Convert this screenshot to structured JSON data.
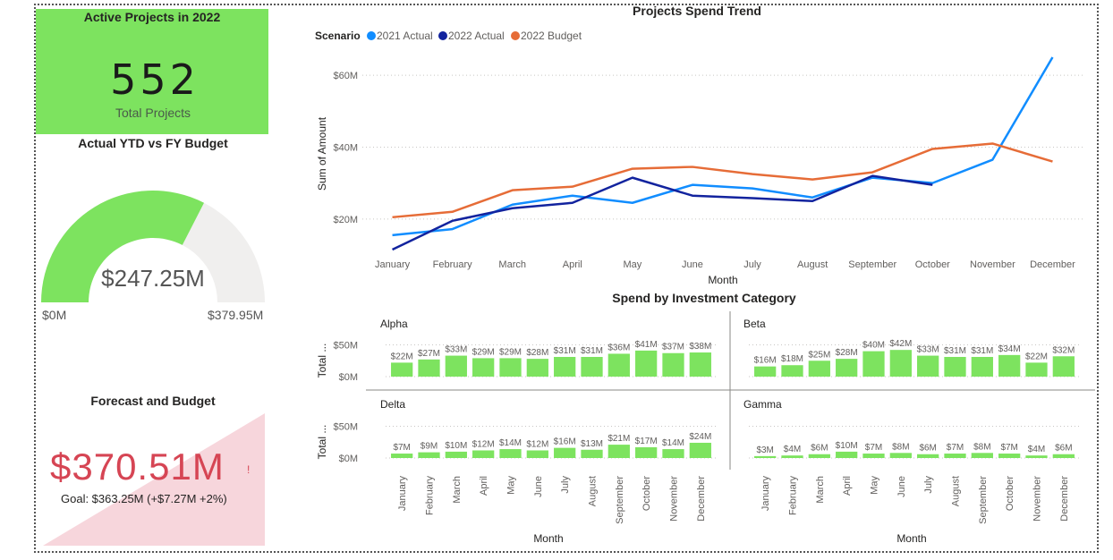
{
  "kpi": {
    "title": "Active Projects in 2022",
    "value": "552",
    "label": "Total Projects",
    "bg_color": "#7de35f"
  },
  "gauge": {
    "title": "Actual YTD vs FY Budget",
    "value_label": "$247.25M",
    "min_label": "$0M",
    "max_label": "$379.95M",
    "value": 247.25,
    "min": 0,
    "max": 379.95,
    "fill_color": "#7de35f",
    "track_color": "#f0efee"
  },
  "forecast": {
    "title": "Forecast and Budget",
    "value": "$370.51M",
    "indicator": "!",
    "goal": "Goal: $363.25M (+$7.27M +2%)",
    "bg_color": "#f7d6dc",
    "value_color": "#d64554"
  },
  "chart_data": [
    {
      "type": "line",
      "title": "Projects Spend Trend",
      "xlabel": "Month",
      "ylabel": "Sum of Amount",
      "legend_title": "Scenario",
      "legend_position": "top-left",
      "categories": [
        "January",
        "February",
        "March",
        "April",
        "May",
        "June",
        "July",
        "August",
        "September",
        "October",
        "November",
        "December"
      ],
      "ylim": [
        10,
        66
      ],
      "yticks": [
        20,
        40,
        60
      ],
      "ytick_labels": [
        "$20M",
        "$40M",
        "$60M"
      ],
      "grid": true,
      "series": [
        {
          "name": "2021 Actual",
          "color": "#118dff",
          "values": [
            15.5,
            17.2,
            24.0,
            26.5,
            24.5,
            29.5,
            28.5,
            26.0,
            31.5,
            30.0,
            36.5,
            65.0
          ]
        },
        {
          "name": "2022 Actual",
          "color": "#12239e",
          "values": [
            11.5,
            19.5,
            23.0,
            24.5,
            31.5,
            26.5,
            25.8,
            25.0,
            32.0,
            29.5,
            null,
            null
          ]
        },
        {
          "name": "2022 Budget",
          "color": "#e66c37",
          "values": [
            20.5,
            22.0,
            28.0,
            29.0,
            34.0,
            34.5,
            32.5,
            31.0,
            33.0,
            39.5,
            41.0,
            36.0
          ]
        }
      ]
    },
    {
      "type": "bar",
      "title": "Spend by Investment Category",
      "xlabel": "Month",
      "ylabel": "Total ...",
      "yticks": [
        0,
        50
      ],
      "ytick_labels": [
        "$0M",
        "$50M"
      ],
      "ylim": [
        0,
        52
      ],
      "bar_color": "#7de35f",
      "categories": [
        "January",
        "February",
        "March",
        "April",
        "May",
        "June",
        "July",
        "August",
        "September",
        "October",
        "November",
        "December"
      ],
      "panels": [
        {
          "name": "Alpha",
          "values": [
            22,
            27,
            33,
            29,
            29,
            28,
            31,
            31,
            36,
            41,
            37,
            38
          ],
          "labels": [
            "$22M",
            "$27M",
            "$33M",
            "$29M",
            "$29M",
            "$28M",
            "$31M",
            "$31M",
            "$36M",
            "$41M",
            "$37M",
            "$38M"
          ]
        },
        {
          "name": "Beta",
          "values": [
            16,
            18,
            25,
            28,
            40,
            42,
            33,
            31,
            31,
            34,
            22,
            32
          ],
          "labels": [
            "$16M",
            "$18M",
            "$25M",
            "$28M",
            "$40M",
            "$42M",
            "$33M",
            "$31M",
            "$31M",
            "$34M",
            "$22M",
            "$32M"
          ]
        },
        {
          "name": "Delta",
          "values": [
            7,
            9,
            10,
            12,
            14,
            12,
            16,
            13,
            21,
            17,
            14,
            24
          ],
          "labels": [
            "$7M",
            "$9M",
            "$10M",
            "$12M",
            "$14M",
            "$12M",
            "$16M",
            "$13M",
            "$21M",
            "$17M",
            "$14M",
            "$24M"
          ]
        },
        {
          "name": "Gamma",
          "values": [
            3,
            4,
            6,
            10,
            7,
            8,
            6,
            7,
            8,
            7,
            4,
            6
          ],
          "labels": [
            "$3M",
            "$4M",
            "$6M",
            "$10M",
            "$7M",
            "$8M",
            "$6M",
            "$7M",
            "$8M",
            "$7M",
            "$4M",
            "$6M"
          ]
        }
      ]
    }
  ]
}
